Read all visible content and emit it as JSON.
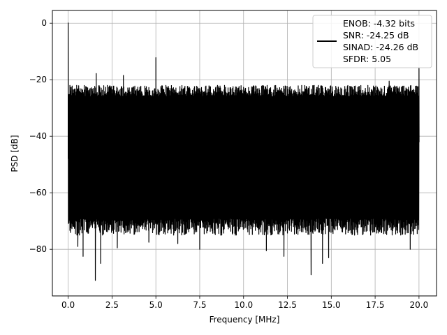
{
  "chart_data": {
    "type": "line",
    "title": "",
    "xlabel": "Frequency [MHz]",
    "ylabel": "PSD [dB]",
    "xlim": [
      -0.9,
      21.0
    ],
    "ylim": [
      -96.5,
      4.5
    ],
    "xticks": [
      0.0,
      2.5,
      5.0,
      7.5,
      10.0,
      12.5,
      15.0,
      17.5,
      20.0
    ],
    "xtick_labels": [
      "0.0",
      "2.5",
      "5.0",
      "7.5",
      "10.0",
      "12.5",
      "15.0",
      "17.5",
      "20.0"
    ],
    "yticks": [
      0,
      -20,
      -40,
      -60,
      -80
    ],
    "ytick_labels": [
      "0",
      "−20",
      "−40",
      "−60",
      "−80"
    ],
    "grid": true,
    "legend": {
      "placement": "upper-right",
      "entries": [
        "ENOB: -4.32 bits",
        "SNR: -24.25 dB",
        "SINAD: -24.26 dB",
        "SFDR: 5.05"
      ]
    },
    "series": [
      {
        "color": "#000000",
        "x": [
          0.0,
          0.1,
          1.6,
          3.15,
          5.0,
          15.05,
          18.3,
          20.0
        ],
        "values": [
          0.1,
          -22.0,
          -17.8,
          -18.5,
          -12.2,
          -22.5,
          -20.5,
          -16.0
        ],
        "noise_floor_top": -24.5,
        "noise_floor_bottom": -72.0,
        "notable_dips": [
          {
            "x": 0.55,
            "y": -79.0
          },
          {
            "x": 0.85,
            "y": -82.5
          },
          {
            "x": 1.55,
            "y": -91.0
          },
          {
            "x": 1.85,
            "y": -85.0
          },
          {
            "x": 2.8,
            "y": -79.5
          },
          {
            "x": 4.6,
            "y": -77.5
          },
          {
            "x": 6.25,
            "y": -78.0
          },
          {
            "x": 7.5,
            "y": -80.0
          },
          {
            "x": 11.3,
            "y": -80.5
          },
          {
            "x": 12.3,
            "y": -82.5
          },
          {
            "x": 13.85,
            "y": -89.0
          },
          {
            "x": 14.5,
            "y": -85.0
          },
          {
            "x": 14.85,
            "y": -83.0
          },
          {
            "x": 19.5,
            "y": -80.0
          }
        ]
      }
    ]
  }
}
